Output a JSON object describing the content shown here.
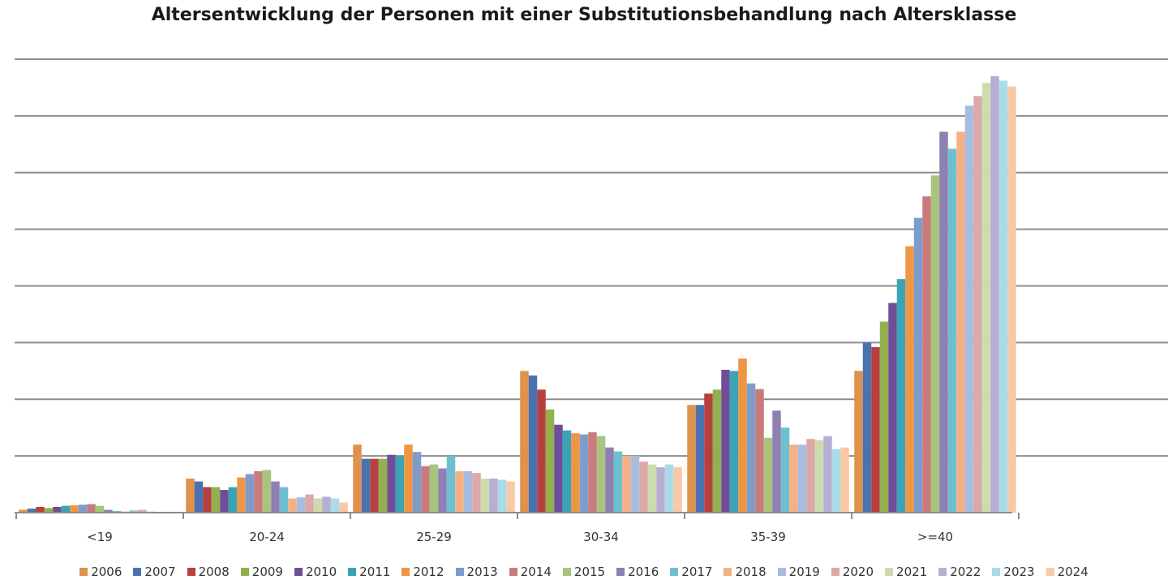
{
  "chart_data": {
    "type": "bar",
    "title": "Altersentwicklung der Personen mit einer Substitutionsbehandlung nach Altersklasse",
    "xlabel": "",
    "ylabel": "",
    "ylim": [
      0,
      8
    ],
    "grid": true,
    "legend_position": "bottom",
    "categories": [
      "<19",
      "20-24",
      "25-29",
      "30-34",
      "35-39",
      ">=40"
    ],
    "series": [
      {
        "name": "2006",
        "color": "#E0914A",
        "values": [
          0.05,
          0.6,
          1.2,
          2.5,
          1.9,
          2.5
        ]
      },
      {
        "name": "2007",
        "color": "#4A72B0",
        "values": [
          0.07,
          0.55,
          0.95,
          2.42,
          1.9,
          3.0
        ]
      },
      {
        "name": "2008",
        "color": "#B5403F",
        "values": [
          0.1,
          0.45,
          0.95,
          2.17,
          2.1,
          2.92
        ]
      },
      {
        "name": "2009",
        "color": "#93B04E",
        "values": [
          0.08,
          0.45,
          0.95,
          1.82,
          2.17,
          3.37
        ]
      },
      {
        "name": "2010",
        "color": "#6E4E98",
        "values": [
          0.1,
          0.4,
          1.02,
          1.55,
          2.52,
          3.7
        ]
      },
      {
        "name": "2011",
        "color": "#3AA3B5",
        "values": [
          0.12,
          0.45,
          1.0,
          1.45,
          2.5,
          4.12
        ]
      },
      {
        "name": "2012",
        "color": "#EF9645",
        "values": [
          0.13,
          0.62,
          1.2,
          1.4,
          2.72,
          4.7
        ]
      },
      {
        "name": "2013",
        "color": "#7E9CCB",
        "values": [
          0.14,
          0.68,
          1.07,
          1.38,
          2.28,
          5.2
        ]
      },
      {
        "name": "2014",
        "color": "#C97B7B",
        "values": [
          0.15,
          0.73,
          0.82,
          1.42,
          2.18,
          5.58
        ]
      },
      {
        "name": "2015",
        "color": "#A8C47D",
        "values": [
          0.12,
          0.75,
          0.85,
          1.35,
          1.32,
          5.95
        ]
      },
      {
        "name": "2016",
        "color": "#8F80B3",
        "values": [
          0.05,
          0.55,
          0.78,
          1.15,
          1.8,
          6.72
        ]
      },
      {
        "name": "2017",
        "color": "#6EC0D0",
        "values": [
          0.03,
          0.45,
          1.0,
          1.08,
          1.5,
          6.42
        ]
      },
      {
        "name": "2018",
        "color": "#F5B083",
        "values": [
          0.02,
          0.25,
          0.73,
          1.0,
          1.2,
          6.72
        ]
      },
      {
        "name": "2019",
        "color": "#A7BDE0",
        "values": [
          0.04,
          0.27,
          0.73,
          1.0,
          1.2,
          7.18
        ]
      },
      {
        "name": "2020",
        "color": "#DDA8A8",
        "values": [
          0.05,
          0.32,
          0.7,
          0.9,
          1.3,
          7.35
        ]
      },
      {
        "name": "2021",
        "color": "#CCDCAE",
        "values": [
          0.02,
          0.25,
          0.6,
          0.85,
          1.28,
          7.58
        ]
      },
      {
        "name": "2022",
        "color": "#B7AFD2",
        "values": [
          0.01,
          0.28,
          0.6,
          0.8,
          1.35,
          7.7
        ]
      },
      {
        "name": "2023",
        "color": "#A9DCE8",
        "values": [
          0.01,
          0.25,
          0.58,
          0.85,
          1.12,
          7.62
        ]
      },
      {
        "name": "2024",
        "color": "#F8C9A6",
        "values": [
          0.01,
          0.18,
          0.55,
          0.8,
          1.15,
          7.52
        ]
      }
    ]
  }
}
